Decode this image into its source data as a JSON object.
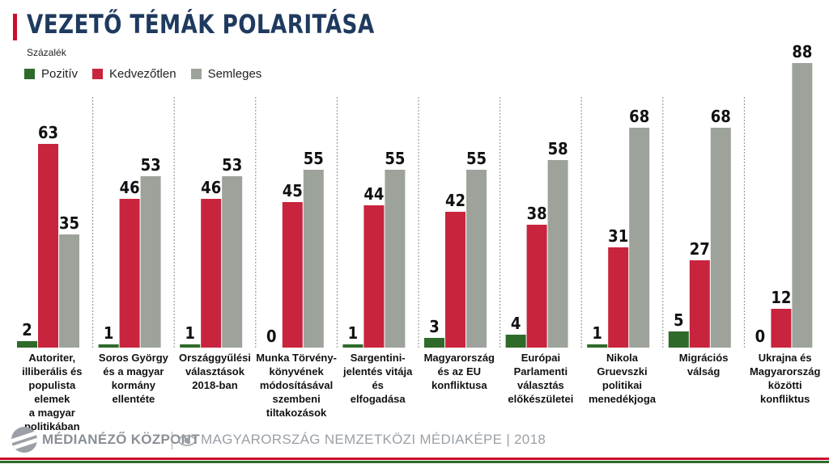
{
  "header": {
    "title": "VEZETŐ TÉMÁK POLARITÁSA",
    "subtitle": "Százalék"
  },
  "colors": {
    "positive": "#2e6b2a",
    "negative": "#c8243e",
    "neutral": "#9da39a",
    "title": "#1f3a5f",
    "accent_red": "#c8102e"
  },
  "legend": {
    "items": [
      {
        "label": "Pozitív",
        "color": "#2e6b2a"
      },
      {
        "label": "Kedvezőtlen",
        "color": "#c8243e"
      },
      {
        "label": "Semleges",
        "color": "#9da39a"
      }
    ]
  },
  "chart_data": {
    "type": "bar",
    "title": "VEZETŐ TÉMÁK POLARITÁSA",
    "ylabel": "Százalék",
    "ylim": [
      0,
      100
    ],
    "grid": false,
    "legend_position": "top-left",
    "categories": [
      "Autoriter, illiberális és populista elemek a magyar politikában",
      "Soros György és a magyar kormány ellentéte",
      "Országgyűlési választások 2018-ban",
      "Munka Törvény-könyvének módosításával szembeni tiltakozások",
      "Sargentini-jelentés vitája és elfogadása",
      "Magyarország és az EU konfliktusa",
      "Európai Parlamenti választás előkészületei",
      "Nikola Gruevszki politikai menedékjoga",
      "Migrációs válság",
      "Ukrajna és Magyarország közötti konfliktus"
    ],
    "category_lines": [
      [
        "Autoriter,",
        "illiberális és",
        "populista elemek",
        "a magyar",
        "politikában"
      ],
      [
        "Soros György",
        "és a magyar",
        "kormány",
        "ellentéte"
      ],
      [
        "Országgyűlési",
        "választások",
        "2018-ban"
      ],
      [
        "Munka Törvény-",
        "könyvének",
        "módosításával",
        "szembeni",
        "tiltakozások"
      ],
      [
        "Sargentini-",
        "jelentés vitája és",
        "elfogadása"
      ],
      [
        "Magyarország",
        "és az EU",
        "konfliktusa"
      ],
      [
        "Európai",
        "Parlamenti",
        "választás",
        "előkészületei"
      ],
      [
        "Nikola Gruevszki",
        "politikai",
        "menedékjoga"
      ],
      [
        "Migrációs",
        "válság"
      ],
      [
        "Ukrajna és",
        "Magyarország",
        "közötti konfliktus"
      ]
    ],
    "series": [
      {
        "name": "Pozitív",
        "values": [
          2,
          1,
          1,
          0,
          1,
          3,
          4,
          1,
          5,
          0
        ]
      },
      {
        "name": "Kedvezőtlen",
        "values": [
          63,
          46,
          46,
          45,
          44,
          42,
          38,
          31,
          27,
          12
        ]
      },
      {
        "name": "Semleges",
        "values": [
          35,
          53,
          53,
          55,
          55,
          55,
          58,
          68,
          68,
          88
        ]
      }
    ]
  },
  "footer": {
    "brand": "MÉDIANÉZŐ KÖZPONT",
    "tagline": "MAGYARORSZÁG NEMZETKÖZI MÉDIAKÉPE | 2018",
    "logo_icon": "medianezo-logo-icon",
    "eye_icon": "eye-icon"
  }
}
